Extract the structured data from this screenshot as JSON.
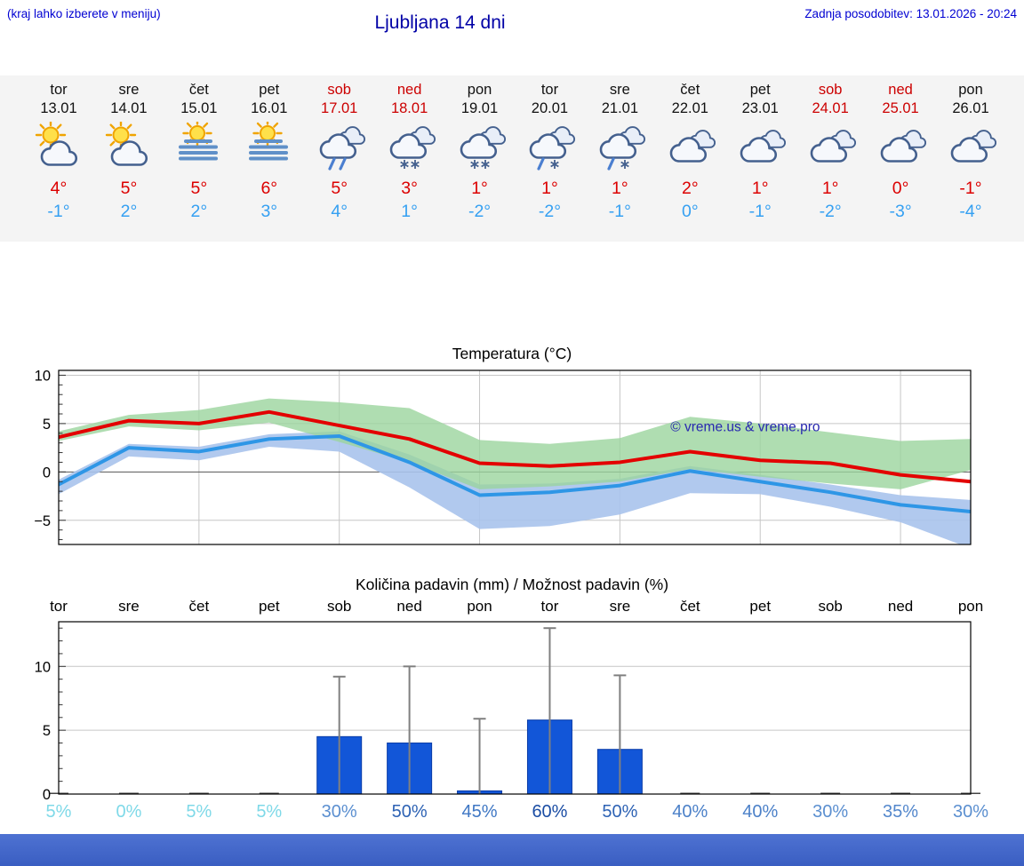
{
  "header": {
    "hint": "(kraj lahko izberete v meniju)",
    "title": "Ljubljana 14 dni",
    "updated": "Zadnja posodobitev: 13.01.2026 - 20:24"
  },
  "colors": {
    "link_blue": "#0000d2",
    "title_blue": "#0000a6",
    "weekend_red": "#cc0000",
    "tmax_red": "#dc0000",
    "tmin_blue": "#35a0f2",
    "footer_blue": "#4468c8"
  },
  "forecast": {
    "days": [
      {
        "day": "tor",
        "date": "13.01",
        "weekend": false,
        "icon": "partly-cloudy",
        "tmax": "4°",
        "tmin": "-1°"
      },
      {
        "day": "sre",
        "date": "14.01",
        "weekend": false,
        "icon": "partly-cloudy",
        "tmax": "5°",
        "tmin": "2°"
      },
      {
        "day": "čet",
        "date": "15.01",
        "weekend": false,
        "icon": "fog-sun",
        "tmax": "5°",
        "tmin": "2°"
      },
      {
        "day": "pet",
        "date": "16.01",
        "weekend": false,
        "icon": "fog-sun",
        "tmax": "6°",
        "tmin": "3°"
      },
      {
        "day": "sob",
        "date": "17.01",
        "weekend": true,
        "icon": "rain",
        "tmax": "5°",
        "tmin": "4°"
      },
      {
        "day": "ned",
        "date": "18.01",
        "weekend": true,
        "icon": "snow",
        "tmax": "3°",
        "tmin": "1°"
      },
      {
        "day": "pon",
        "date": "19.01",
        "weekend": false,
        "icon": "snow",
        "tmax": "1°",
        "tmin": "-2°"
      },
      {
        "day": "tor",
        "date": "20.01",
        "weekend": false,
        "icon": "sleet",
        "tmax": "1°",
        "tmin": "-2°"
      },
      {
        "day": "sre",
        "date": "21.01",
        "weekend": false,
        "icon": "sleet",
        "tmax": "1°",
        "tmin": "-1°"
      },
      {
        "day": "čet",
        "date": "22.01",
        "weekend": false,
        "icon": "cloudy",
        "tmax": "2°",
        "tmin": "0°"
      },
      {
        "day": "pet",
        "date": "23.01",
        "weekend": false,
        "icon": "cloudy",
        "tmax": "1°",
        "tmin": "-1°"
      },
      {
        "day": "sob",
        "date": "24.01",
        "weekend": true,
        "icon": "cloudy",
        "tmax": "1°",
        "tmin": "-2°"
      },
      {
        "day": "ned",
        "date": "25.01",
        "weekend": true,
        "icon": "cloudy",
        "tmax": "0°",
        "tmin": "-3°"
      },
      {
        "day": "pon",
        "date": "26.01",
        "weekend": false,
        "icon": "cloudy",
        "tmax": "-1°",
        "tmin": "-4°"
      }
    ]
  },
  "chart_data": [
    {
      "type": "line",
      "title": "Temperatura (°C)",
      "categories": [
        "tor",
        "sre",
        "čet",
        "pet",
        "sob",
        "ned",
        "pon",
        "tor",
        "sre",
        "čet",
        "pet",
        "sob",
        "ned",
        "pon"
      ],
      "series": [
        {
          "name": "max-temperature",
          "color": "#e30000",
          "values": [
            3.6,
            5.3,
            5.0,
            6.2,
            4.8,
            3.4,
            0.9,
            0.6,
            1.0,
            2.1,
            1.2,
            0.9,
            -0.3,
            -1.0
          ]
        },
        {
          "name": "min-temperature",
          "color": "#2e96e6",
          "values": [
            -1.3,
            2.5,
            2.1,
            3.4,
            3.7,
            1.0,
            -2.4,
            -2.1,
            -1.4,
            0.1,
            -1.0,
            -2.1,
            -3.4,
            -4.1
          ]
        }
      ],
      "bands": [
        {
          "name": "max-temperature-range",
          "color": "#9bd49e",
          "upper": [
            4.2,
            5.9,
            6.4,
            7.6,
            7.2,
            6.6,
            3.3,
            2.9,
            3.5,
            5.7,
            5.0,
            4.1,
            3.2,
            3.4
          ],
          "lower": [
            3.2,
            4.7,
            4.3,
            5.1,
            3.1,
            1.0,
            -1.8,
            -1.5,
            -1.0,
            0.3,
            -0.5,
            -1.2,
            -1.8,
            0.2
          ]
        },
        {
          "name": "min-temperature-range",
          "color": "#a9c3ec",
          "upper": [
            -0.8,
            2.9,
            2.6,
            3.9,
            4.2,
            1.8,
            -1.3,
            -1.2,
            -0.7,
            0.6,
            -0.3,
            -1.3,
            -2.4,
            -2.9
          ],
          "lower": [
            -2.3,
            1.6,
            1.2,
            2.6,
            2.1,
            -1.6,
            -5.9,
            -5.6,
            -4.4,
            -2.2,
            -2.3,
            -3.6,
            -5.2,
            -7.9
          ]
        }
      ],
      "ylim": [
        -7.5,
        10.5
      ],
      "yticks": [
        -5,
        0,
        5,
        10
      ],
      "grid_x_indices": [
        2,
        4,
        6,
        8,
        10,
        12
      ],
      "grid": true,
      "legend": "none",
      "watermark": "© vreme.us & vreme.pro"
    },
    {
      "type": "bar",
      "title": "Količina padavin (mm) / Možnost padavin (%)",
      "categories": [
        "tor",
        "sre",
        "čet",
        "pet",
        "sob",
        "ned",
        "pon",
        "tor",
        "sre",
        "čet",
        "pet",
        "sob",
        "ned",
        "pon"
      ],
      "values": [
        0,
        0,
        0,
        0,
        4.5,
        4.0,
        0.25,
        5.8,
        3.5,
        0,
        0,
        0,
        0,
        0
      ],
      "whisker_max": [
        0,
        0,
        0,
        0,
        9.2,
        10.0,
        5.9,
        13.0,
        9.3,
        0,
        0,
        0,
        0,
        0
      ],
      "ylim": [
        0,
        13.5
      ],
      "yticks": [
        0,
        5,
        10
      ],
      "xlabel": "",
      "ylabel": "",
      "bar_color": "#1256d8",
      "probabilities": [
        {
          "label": "5%",
          "color": "#7fd9e8"
        },
        {
          "label": "0%",
          "color": "#7fd9e8"
        },
        {
          "label": "5%",
          "color": "#7fd9e8"
        },
        {
          "label": "5%",
          "color": "#7fd9e8"
        },
        {
          "label": "30%",
          "color": "#5b8fd0"
        },
        {
          "label": "50%",
          "color": "#2d62b4"
        },
        {
          "label": "45%",
          "color": "#3f77c4"
        },
        {
          "label": "60%",
          "color": "#1b4da4"
        },
        {
          "label": "50%",
          "color": "#2d62b4"
        },
        {
          "label": "40%",
          "color": "#4b80c8"
        },
        {
          "label": "40%",
          "color": "#4b80c8"
        },
        {
          "label": "30%",
          "color": "#5b8fd0"
        },
        {
          "label": "35%",
          "color": "#5387cc"
        },
        {
          "label": "30%",
          "color": "#5b8fd0"
        }
      ]
    }
  ]
}
